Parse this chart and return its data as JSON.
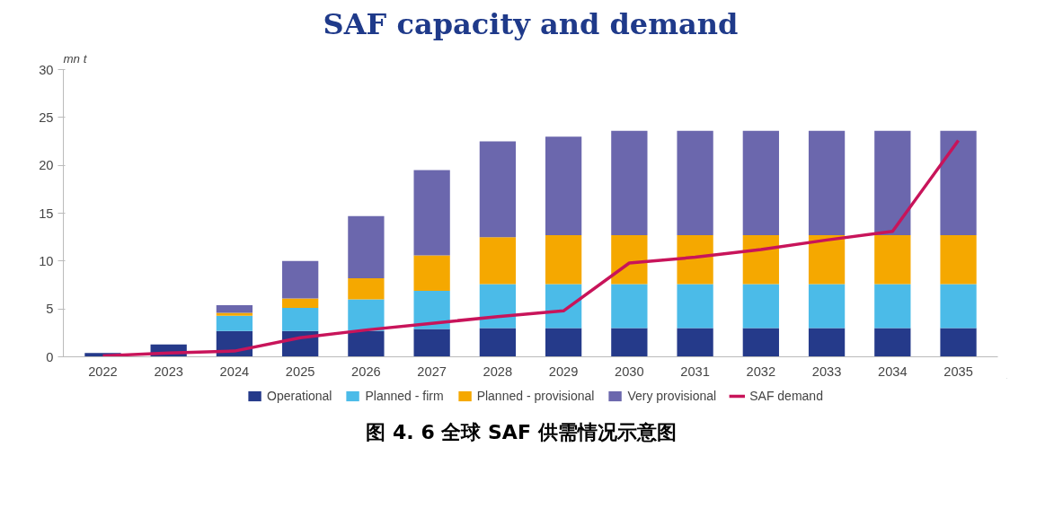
{
  "chart_data": {
    "type": "bar",
    "title": "SAF capacity and demand",
    "ylabel": "mn t",
    "categories": [
      "2022",
      "2023",
      "2024",
      "2025",
      "2026",
      "2027",
      "2028",
      "2029",
      "2030",
      "2031",
      "2032",
      "2033",
      "2034",
      "2035"
    ],
    "stacked": true,
    "series": [
      {
        "name": "Operational",
        "color": "#253a8a",
        "values": [
          0.4,
          1.3,
          2.7,
          2.7,
          2.7,
          2.9,
          3.0,
          3.0,
          3.0,
          3.0,
          3.0,
          3.0,
          3.0,
          3.0
        ]
      },
      {
        "name": "Planned - firm",
        "color": "#4bbbe8",
        "values": [
          0,
          0,
          1.6,
          2.4,
          3.3,
          4.0,
          4.6,
          4.6,
          4.6,
          4.6,
          4.6,
          4.6,
          4.6,
          4.6
        ]
      },
      {
        "name": "Planned - provisional",
        "color": "#f5a800",
        "values": [
          0,
          0,
          0.3,
          1.0,
          2.2,
          3.7,
          4.9,
          5.1,
          5.1,
          5.1,
          5.1,
          5.1,
          5.1,
          5.1
        ]
      },
      {
        "name": "Very provisional",
        "color": "#6b67ad",
        "values": [
          0,
          0,
          0.8,
          3.9,
          6.5,
          8.9,
          10.0,
          10.3,
          10.9,
          10.9,
          10.9,
          10.9,
          10.9,
          10.9
        ]
      },
      {
        "name": "SAF demand",
        "type": "line",
        "color": "#c8145a",
        "values": [
          0.1,
          0.4,
          0.6,
          2.0,
          2.8,
          3.5,
          4.2,
          4.8,
          9.8,
          10.4,
          11.2,
          12.2,
          13.1,
          22.6
        ]
      }
    ],
    "ylim": [
      0,
      30
    ],
    "yticks": [
      0,
      5,
      10,
      15,
      20,
      25,
      30
    ],
    "grid": false,
    "legend": "bottom",
    "annotations": [
      "图 4. 6 全球 SAF 供需情况示意图"
    ]
  }
}
